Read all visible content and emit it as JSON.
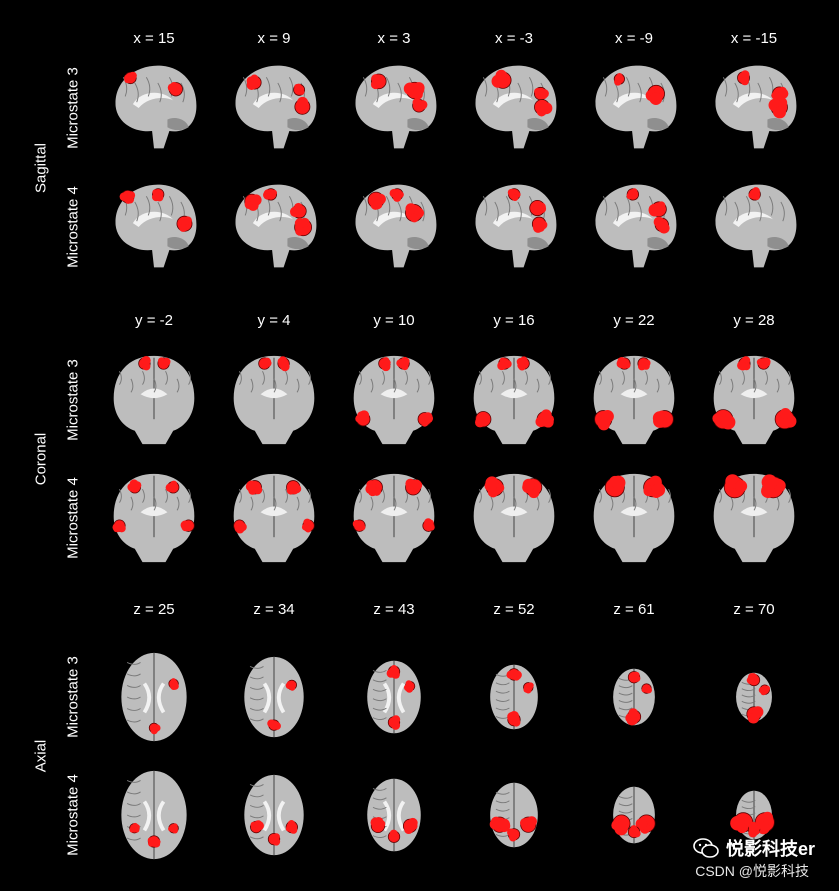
{
  "figure": {
    "sections": [
      {
        "key": "sagittal",
        "label": "Sagittal",
        "view": "sagittal",
        "coords": [
          "x = 15",
          "x = 9",
          "x = 3",
          "x = -3",
          "x = -9",
          "x = -15"
        ],
        "rows": [
          "Microstate 3",
          "Microstate 4"
        ]
      },
      {
        "key": "coronal",
        "label": "Coronal",
        "view": "coronal",
        "coords": [
          "y = -2",
          "y = 4",
          "y = 10",
          "y = 16",
          "y = 22",
          "y = 28"
        ],
        "rows": [
          "Microstate 3",
          "Microstate 4"
        ]
      },
      {
        "key": "axial",
        "label": "Axial",
        "view": "axial",
        "coords": [
          "z = 25",
          "z = 34",
          "z = 43",
          "z = 52",
          "z = 61",
          "z = 70"
        ],
        "rows": [
          "Microstate 3",
          "Microstate 4"
        ]
      }
    ],
    "colors": {
      "background": "#000000",
      "activation": "#ff1a1a",
      "brain_gray": "#bdbdbd",
      "text": "#ffffff"
    }
  },
  "watermark": {
    "name": "悦影科技er",
    "csdn": "CSDN @悦影科技",
    "icon": "wechat-icon"
  }
}
